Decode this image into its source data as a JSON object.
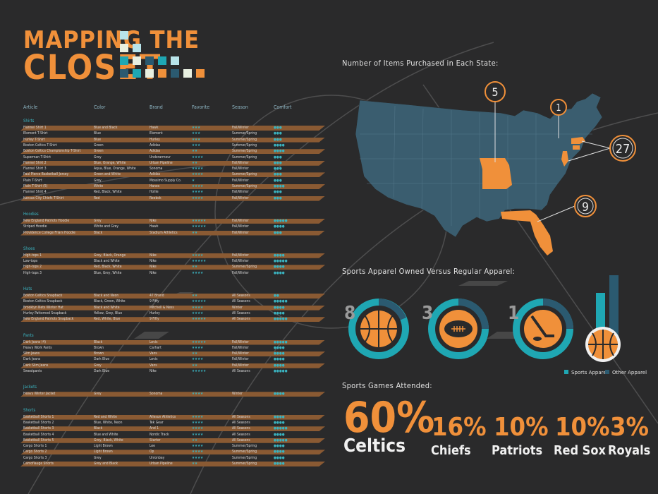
{
  "header": {
    "title_line1": "MAPPING THE",
    "title_line2": "CLOSET"
  },
  "table": {
    "columns": [
      "Article",
      "Color",
      "Brand",
      "Favorite",
      "Season",
      "Comfort"
    ],
    "categories": [
      {
        "name": "Shirts",
        "rows": [
          [
            "Flannel Shirt 1",
            "Blue and Black",
            "Hawk",
            3,
            "Fall/Winter",
            3
          ],
          [
            "Element T-Shirt",
            "Blue",
            "Element",
            3,
            "Summer/Spring",
            3
          ],
          [
            "Hurley T-Shirt",
            "Blue",
            "Hurley",
            3,
            "Summer/Spring",
            3
          ],
          [
            "Boston Celtics T-Shirt",
            "Green",
            "Adidas",
            3,
            "Summer/Spring",
            4
          ],
          [
            "Boston Celtics Championship T-Shirt",
            "Green",
            "Adidas",
            2,
            "Summer/Spring",
            4
          ],
          [
            "Superman T-Shirt",
            "Grey",
            "Underarmour",
            4,
            "Summer/Spring",
            3
          ],
          [
            "Flannel Shirt 2",
            "Blue, Orange, White",
            "Urban Pipeline",
            2,
            "Fall/Winter",
            3
          ],
          [
            "Flannel Shirt 3",
            "Aqua, Blue, Orange, White",
            "Sonoma",
            4,
            "Fall/Winter",
            3
          ],
          [
            "Paul Pierce Basketball Jersey",
            "Green and White",
            "Adidas",
            4,
            "Summer/Spring",
            3
          ],
          [
            "Plain T-Shirt",
            "Grey",
            "Mossimo Supply Co.",
            1,
            "Fall/Winter",
            3
          ],
          [
            "Plain T-Shirt (5)",
            "White",
            "Hanes",
            4,
            "Summer/Spring",
            4
          ],
          [
            "Flannel Shirt 4",
            "Red, Black, White",
            "Hollie",
            4,
            "Fall/Winter",
            3
          ],
          [
            "Kansas City Chiefs T-Shirt",
            "Red",
            "Reebok",
            4,
            "Fall/Winter",
            3
          ]
        ]
      },
      {
        "name": "Hoodies",
        "rows": [
          [
            "New England Patriots Hoodie",
            "Grey",
            "Nike",
            5,
            "Fall/Winter",
            5
          ],
          [
            "Striped Hoodie",
            "White and Grey",
            "Hawk",
            5,
            "Fall/Winter",
            4
          ],
          [
            "Providence College Friars Hoodie",
            "Black",
            "Stadium Athletics",
            2,
            "Fall/Winter",
            3
          ]
        ]
      },
      {
        "name": "Shoes",
        "rows": [
          [
            "High-tops 1",
            "Grey, Black, Orange",
            "Nike",
            4,
            "Fall/Winter",
            4
          ],
          [
            "Low-tops",
            "Black and White",
            "Nike",
            5,
            "Fall/Winter",
            5
          ],
          [
            "High-tops 2",
            "Red, Black, White",
            "Nike",
            2,
            "Summer/Spring",
            4
          ],
          [
            "High-tops 3",
            "Blue, Grey, White",
            "Nike",
            4,
            "Fall/Winter",
            4
          ]
        ]
      },
      {
        "name": "Hats",
        "rows": [
          [
            "Boston Celtics Snapback",
            "Black and Neon",
            "47 Brand",
            2,
            "All Seasons",
            2
          ],
          [
            "Boston Celtics Snapback",
            "Black, Green, White",
            "9 Fifty",
            5,
            "All Seasons",
            5
          ],
          [
            "Brooklyn Nets Winter Hat",
            "Black and White",
            "Mitchell & Ness",
            4,
            "Winter",
            4
          ],
          [
            "Hurley Patterned Snapback",
            "Yellow, Grey, Blue",
            "Hurley",
            4,
            "All Seasons",
            4
          ],
          [
            "New England Patriots Snapback",
            "Red, White, Blue",
            "9 Fifty",
            5,
            "All Seasons",
            5
          ]
        ]
      },
      {
        "name": "Pants",
        "rows": [
          [
            "Dark Jeans (4)",
            "Black",
            "Levis",
            5,
            "Fall/Winter",
            5
          ],
          [
            "Heavy Work Pants",
            "Brown",
            "Carhart",
            4,
            "Fall/Winter",
            4
          ],
          [
            "Slim Jeans",
            "Brown",
            "Vans",
            2,
            "Fall/Winter",
            4
          ],
          [
            "Dark Jeans",
            "Dark Blue",
            "Levis",
            4,
            "Fall/Winter",
            4
          ],
          [
            "Dark Slim Jeans",
            "Grey",
            "Vans",
            2,
            "Fall/Winter",
            4
          ],
          [
            "Sweatpants",
            "Dark Blue",
            "Nike",
            5,
            "All Seasons",
            5
          ]
        ]
      },
      {
        "name": "Jackets",
        "rows": [
          [
            "Heavy Winter Jacket",
            "Grey",
            "Sonoma",
            4,
            "Winter",
            4
          ]
        ]
      },
      {
        "name": "Shorts",
        "rows": [
          [
            "Basketball Shorts 1",
            "Red and White",
            "Allesun Athletics",
            4,
            "All Seasons",
            4
          ],
          [
            "Basketball Shorts 2",
            "Blue, White, Neon",
            "Tek Gear",
            4,
            "All Seasons",
            4
          ],
          [
            "Basketball Shorts 3",
            "Black",
            "And 1",
            4,
            "All Seasons",
            5
          ],
          [
            "Basketball Shorts 4",
            "Blue and White",
            "Nordic Track",
            4,
            "All Seasons",
            4
          ],
          [
            "Basketball Shorts 5",
            "Grey, Black, White",
            "Starter",
            2,
            "All Seasons",
            5
          ],
          [
            "Cargo Shorts 1",
            "Light Brown",
            "Lee",
            4,
            "Summer/Spring",
            4
          ],
          [
            "Cargo Shorts 2",
            "Light Brown",
            "Op",
            4,
            "Summer/Spring",
            4
          ],
          [
            "Cargo Shorts 3",
            "Grey",
            "Unionbay",
            4,
            "Summer/Spring",
            4
          ],
          [
            "Camoflauge Shorts",
            "Grey and Black",
            "Urban Pipeline",
            2,
            "Summer/Spring",
            4
          ]
        ]
      }
    ]
  },
  "map_section": {
    "title": "Number of Items Purchased in Each State:",
    "callouts": [
      "5",
      "1",
      "27",
      "9"
    ]
  },
  "apparel_section": {
    "title": "Sports Apparel Owned Versus Regular Apparel:",
    "legend": [
      "Sports Apparel",
      "Other Apparel"
    ],
    "counts": [
      "8",
      "3",
      "1"
    ]
  },
  "games_section": {
    "title": "Sports Games Attended:",
    "items": [
      {
        "pct": "60%",
        "team": "Celtics"
      },
      {
        "pct": "16%",
        "team": "Chiefs"
      },
      {
        "pct": "10%",
        "team": "Patriots"
      },
      {
        "pct": "10%",
        "team": "Red Sox"
      },
      {
        "pct": "3%",
        "team": "Royals"
      }
    ]
  },
  "colors": {
    "orange": "#f0903a",
    "teal": "#1fa7b3",
    "navy": "#2b5a70",
    "brown": "#8a5a33",
    "bg": "#2a2a2b"
  },
  "chart_data": [
    {
      "type": "map",
      "title": "Number of Items Purchased in Each State:",
      "categories": [
        "Missouri",
        "New York",
        "Massachusetts / Connecticut / New Jersey",
        "Florida"
      ],
      "values": [
        5,
        1,
        27,
        9
      ]
    },
    {
      "type": "pie",
      "title": "Sports Apparel Owned Versus Regular Apparel:",
      "series": [
        {
          "name": "Basketball",
          "value": 8
        },
        {
          "name": "Football",
          "value": 3
        },
        {
          "name": "Hockey",
          "value": 1
        }
      ],
      "legend": [
        "Sports Apparel",
        "Other Apparel"
      ],
      "bar_values": {
        "Sports Apparel": 12,
        "Other Apparel": 25
      }
    },
    {
      "type": "bar",
      "title": "Sports Games Attended:",
      "categories": [
        "Celtics",
        "Chiefs",
        "Patriots",
        "Red Sox",
        "Royals"
      ],
      "values": [
        60,
        16,
        10,
        10,
        3
      ],
      "ylabel": "%"
    }
  ]
}
